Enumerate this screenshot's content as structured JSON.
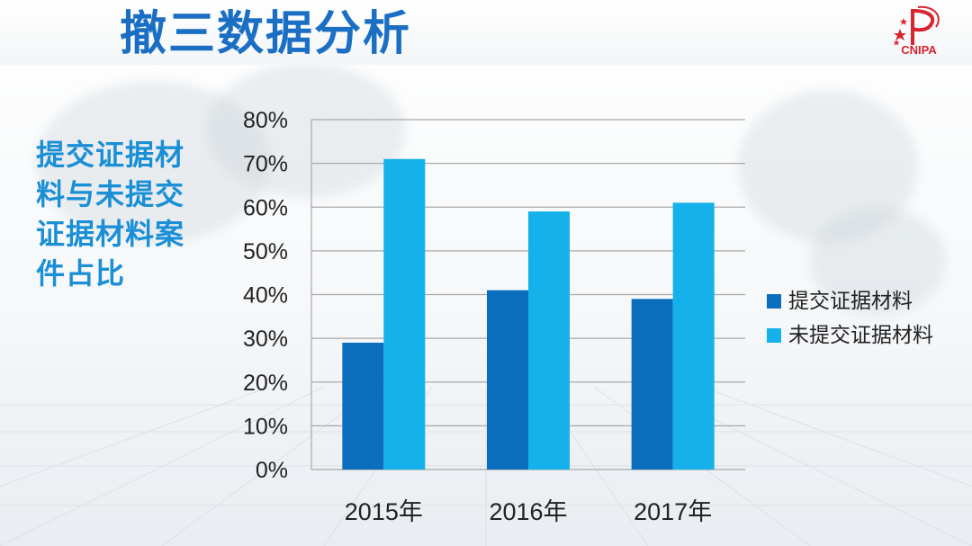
{
  "header": {
    "title": "撤三数据分析",
    "logo_text": "CNIPA"
  },
  "side_title": "提交证据材料与未提交证据材料案件占比",
  "colors": {
    "title": "#1a6fc4",
    "side_title": "#1a8fd6",
    "series_submitted": "#0a6ebd",
    "series_not_submitted": "#14b1ea",
    "logo": "#d9232e"
  },
  "icons": [
    "cnipa-logo-icon"
  ],
  "chart_data": {
    "type": "bar",
    "categories": [
      "2015年",
      "2016年",
      "2017年"
    ],
    "series": [
      {
        "name": "提交证据材料",
        "values": [
          29,
          41,
          39
        ]
      },
      {
        "name": "未提交证据材料",
        "values": [
          71,
          59,
          61
        ]
      }
    ],
    "ylim": [
      0,
      80
    ],
    "yticks": [
      0,
      10,
      20,
      30,
      40,
      50,
      60,
      70,
      80
    ],
    "ytick_labels": [
      "0%",
      "10%",
      "20%",
      "30%",
      "40%",
      "50%",
      "60%",
      "70%",
      "80%"
    ],
    "grid": true,
    "legend_position": "right",
    "title": "",
    "xlabel": "",
    "ylabel": ""
  }
}
